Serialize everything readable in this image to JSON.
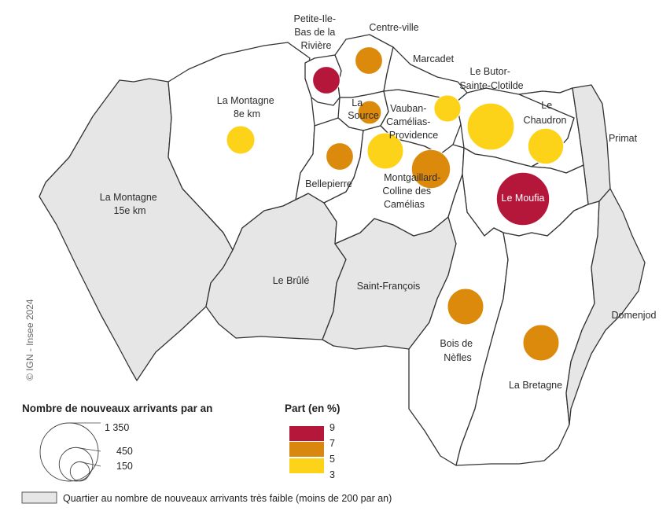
{
  "colors": {
    "grey": "#e6e6e6",
    "white": "#ffffff",
    "c9": "#b5173a",
    "c7": "#d8870f",
    "c5": "#dc8a0c",
    "c3": "#fdd319"
  },
  "districts": [
    {
      "id": "la-montagne-15e-km",
      "label_lines": [
        "La Montagne",
        "15e km"
      ],
      "fill": "grey"
    },
    {
      "id": "la-montagne-8e-km",
      "label_lines": [
        "La Montagne",
        "8e km"
      ],
      "fill": "white",
      "part_class": "3",
      "arrivals": 320
    },
    {
      "id": "le-brule",
      "label_lines": [
        "Le Brûlé"
      ],
      "fill": "grey"
    },
    {
      "id": "saint-francois",
      "label_lines": [
        "Saint-François"
      ],
      "fill": "grey"
    },
    {
      "id": "petite-ile",
      "label_lines": [
        "Petite-Ile-",
        "Bas de la",
        "Rivière"
      ],
      "fill": "white",
      "part_class": "9",
      "arrivals": 300
    },
    {
      "id": "centre-ville",
      "label_lines": [
        "Centre-ville"
      ],
      "fill": "white",
      "part_class": "5",
      "arrivals": 300
    },
    {
      "id": "marcadet",
      "label_lines": [
        "Marcadet"
      ],
      "fill": "white"
    },
    {
      "id": "la-source",
      "label_lines": [
        "La",
        "Source"
      ],
      "fill": "white",
      "part_class": "5",
      "arrivals": 220
    },
    {
      "id": "vauban",
      "label_lines": [
        "Vauban-",
        "Camélias-",
        "Providence"
      ],
      "fill": "white",
      "part_class": "3",
      "arrivals": 520
    },
    {
      "id": "le-butor",
      "label_lines": [
        "Le Butor-",
        "Sainte-Clotilde"
      ],
      "fill": "white",
      "part_class": "3",
      "arrivals": 290
    },
    {
      "id": "bellepierre",
      "label_lines": [
        "Bellepierre"
      ],
      "fill": "white",
      "part_class": "5",
      "arrivals": 300
    },
    {
      "id": "montgaillard",
      "label_lines": [
        "Montgaillard-",
        "Colline des",
        "Camélias"
      ],
      "fill": "white",
      "part_class": "5",
      "arrivals": 600
    },
    {
      "id": "le-chaudron",
      "label_lines": [
        "Le",
        "Chaudron"
      ],
      "fill": "white",
      "part_class": "3",
      "arrivals": 510
    },
    {
      "id": "primat",
      "label_lines": [
        "Primat"
      ],
      "fill": "grey"
    },
    {
      "id": "le-moufia",
      "label_lines": [
        "Le Moufia"
      ],
      "fill": "white",
      "part_class": "9",
      "arrivals": 1120
    },
    {
      "id": "bois-de-nefles",
      "label_lines": [
        "Bois de",
        "Nèfles"
      ],
      "fill": "white",
      "part_class": "5",
      "arrivals": 520
    },
    {
      "id": "la-bretagne",
      "label_lines": [
        "La Bretagne"
      ],
      "fill": "white",
      "part_class": "5",
      "arrivals": 520
    },
    {
      "id": "domenjod",
      "label_lines": [
        "Domenjod"
      ],
      "fill": "grey"
    },
    {
      "id": "unlabeled-east",
      "label_lines": [],
      "fill": "grey"
    }
  ],
  "legend": {
    "size_title": "Nombre de nouveaux arrivants par an",
    "size_values": [
      {
        "label": "1 350",
        "value": 1350
      },
      {
        "label": "450",
        "value": 450
      },
      {
        "label": "150",
        "value": 150
      }
    ],
    "color_title": "Part (en %)",
    "color_classes": [
      {
        "class": "9",
        "color": "c9"
      },
      {
        "class": "7",
        "color": "c7"
      },
      {
        "class": "5",
        "color": "c5"
      },
      {
        "class": "3",
        "color": "c3"
      }
    ],
    "color_break_labels": [
      "9",
      "7",
      "5",
      "3"
    ],
    "grey_note": "Quartier au nombre de nouveaux arrivants très faible (moins de 200 par an)"
  },
  "credit": "© IGN - Insee 2024"
}
